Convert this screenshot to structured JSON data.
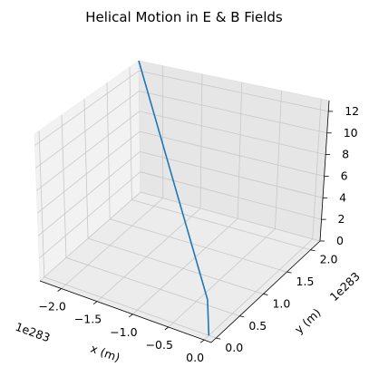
{
  "chart_data": {
    "type": "line",
    "projection": "3d",
    "title": "Helical Motion in E & B Fields",
    "xlabel": "x (m)",
    "ylabel": "y (m)",
    "zlabel": "",
    "x_offset_label": "1e283",
    "y_offset_label": "1e283",
    "x_ticks": [
      "−2.0",
      "−1.5",
      "−1.0",
      "−0.5",
      "0.0"
    ],
    "y_ticks": [
      "0.0",
      "0.5",
      "1.0",
      "1.5",
      "2.0"
    ],
    "z_ticks": [
      "0",
      "2",
      "4",
      "6",
      "8",
      "10",
      "12"
    ],
    "xlim": [
      -2.3e+283,
      1e+282
    ],
    "ylim": [
      -1e+282,
      2.2e+283
    ],
    "zlim": [
      0,
      13
    ],
    "grid": true,
    "series": [
      {
        "color": "#1f77b4",
        "points": [
          {
            "x": 0.0,
            "y": 0.0,
            "z": 0.0
          },
          {
            "x": 0.0,
            "y": 0.0,
            "z": 3.2
          },
          {
            "x": -2.3e+283,
            "y": 2.2e+283,
            "z": 13.0
          }
        ]
      }
    ]
  }
}
